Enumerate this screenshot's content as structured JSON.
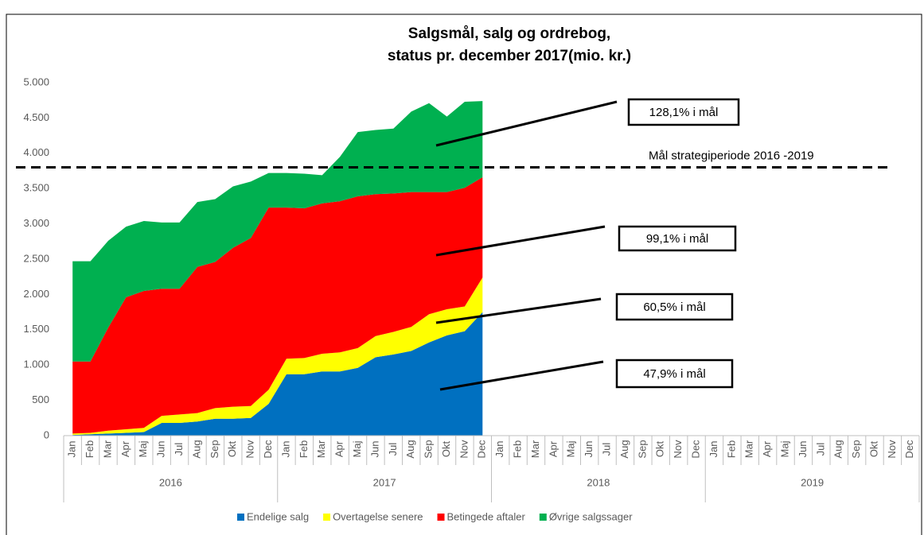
{
  "chart_data": {
    "type": "stacked_area",
    "title": [
      "Salgsmål, salg og ordrebog,",
      "status pr. december 2017(mio. kr.)"
    ],
    "categories": [
      "Jan",
      "Feb",
      "Mar",
      "Apr",
      "Maj",
      "Jun",
      "Jul",
      "Aug",
      "Sep",
      "Okt",
      "Nov",
      "Dec",
      "Jan",
      "Feb",
      "Mar",
      "Apr",
      "Maj",
      "Jun",
      "Jul",
      "Aug",
      "Sep",
      "Okt",
      "Nov",
      "Dec",
      "Jan",
      "Feb",
      "Mar",
      "Apr",
      "Maj",
      "Jun",
      "Jul",
      "Aug",
      "Sep",
      "Okt",
      "Nov",
      "Dec",
      "Jan",
      "Feb",
      "Mar",
      "Apr",
      "Maj",
      "Jun",
      "Jul",
      "Aug",
      "Sep",
      "Okt",
      "Nov",
      "Dec"
    ],
    "years": [
      "2016",
      "2017",
      "2018",
      "2019"
    ],
    "series": [
      {
        "name": "Endelige salg",
        "color": "#0070c0",
        "values": [
          10,
          20,
          30,
          40,
          50,
          180,
          180,
          200,
          240,
          240,
          250,
          450,
          870,
          870,
          910,
          910,
          960,
          1110,
          1150,
          1200,
          1320,
          1420,
          1480,
          1750,
          null,
          null,
          null,
          null,
          null,
          null,
          null,
          null,
          null,
          null,
          null,
          null,
          null,
          null,
          null,
          null,
          null,
          null,
          null,
          null,
          null,
          null,
          null,
          null
        ]
      },
      {
        "name": "Overtagelse senere",
        "color": "#ffff00",
        "values": [
          20,
          20,
          40,
          50,
          60,
          100,
          120,
          120,
          150,
          170,
          170,
          200,
          220,
          230,
          250,
          270,
          280,
          300,
          320,
          340,
          400,
          370,
          350,
          490,
          null,
          null,
          null,
          null,
          null,
          null,
          null,
          null,
          null,
          null,
          null,
          null,
          null,
          null,
          null,
          null,
          null,
          null,
          null,
          null,
          null,
          null,
          null,
          null
        ]
      },
      {
        "name": "Betingede aftaler",
        "color": "#ff0000",
        "values": [
          1020,
          1010,
          1460,
          1870,
          1940,
          1800,
          1780,
          2070,
          2070,
          2250,
          2380,
          2580,
          2140,
          2120,
          2130,
          2140,
          2150,
          2010,
          1960,
          1910,
          1730,
          1660,
          1680,
          1420,
          null,
          null,
          null,
          null,
          null,
          null,
          null,
          null,
          null,
          null,
          null,
          null,
          null,
          null,
          null,
          null,
          null,
          null,
          null,
          null,
          null,
          null,
          null,
          null
        ]
      },
      {
        "name": "Øvrige salgssager",
        "color": "#00b050",
        "values": [
          1420,
          1420,
          1230,
          1000,
          990,
          940,
          940,
          920,
          890,
          870,
          800,
          490,
          490,
          490,
          400,
          630,
          910,
          910,
          920,
          1140,
          1260,
          1070,
          1220,
          1080,
          null,
          null,
          null,
          null,
          null,
          null,
          null,
          null,
          null,
          null,
          null,
          null,
          null,
          null,
          null,
          null,
          null,
          null,
          null,
          null,
          null,
          null,
          null,
          null
        ]
      }
    ],
    "ylim": [
      0,
      5000
    ],
    "yticks": [
      0,
      500,
      {
        "value": 1000,
        "label": "1.000"
      },
      {
        "value": 1500,
        "label": "1.500"
      },
      {
        "value": 2000,
        "label": "2.000"
      },
      {
        "value": 2500,
        "label": "2.500"
      },
      {
        "value": 3000,
        "label": "3.000"
      },
      {
        "value": 3500,
        "label": "3.500"
      },
      {
        "value": 4000,
        "label": "4.000"
      },
      {
        "value": 4500,
        "label": "4.500"
      },
      {
        "value": 5000,
        "label": "5.000"
      }
    ],
    "target": {
      "value": 3800,
      "label": "Mål strategiperiode 2016 -2019"
    },
    "annotations": [
      "128,1% i mål",
      "99,1% i mål",
      "60,5% i mål",
      "47,9% i mål"
    ],
    "legend": "bottom"
  }
}
